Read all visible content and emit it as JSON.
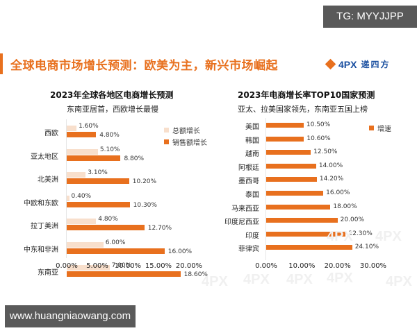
{
  "badges": {
    "tg": "TG: MYYJJPP",
    "site": "www.huangniaowang.com"
  },
  "header": {
    "title": "全球电商市场增长预测：欧美为主，新兴市场崛起",
    "logo_latin": "4PX",
    "logo_cn": "递四方"
  },
  "colors": {
    "accent": "#e8701e",
    "light_bar": "#f8dfcc",
    "logo_blue": "#1a4fa0"
  },
  "watermark": "4PX",
  "chart_data": [
    {
      "type": "bar",
      "orientation": "horizontal",
      "title": "2023年全球各地区电商增长预测",
      "subtitle": "东南亚居首，西欧增长最慢",
      "categories": [
        "西欧",
        "亚太地区",
        "北美洲",
        "中欧和东欧",
        "拉丁美洲",
        "中东和非洲",
        "东南亚"
      ],
      "series": [
        {
          "name": "总额增长",
          "color": "#f8dfcc",
          "values": [
            1.6,
            5.1,
            3.1,
            0.4,
            4.8,
            6.0,
            7.0
          ],
          "labels": [
            "1.60%",
            "5.10%",
            "3.10%",
            "0.40%",
            "4.80%",
            "6.00%",
            "7.00%"
          ]
        },
        {
          "name": "销售额增长",
          "color": "#e8701e",
          "values": [
            4.8,
            8.8,
            10.2,
            10.3,
            12.7,
            16.0,
            18.6
          ],
          "labels": [
            "4.80%",
            "8.80%",
            "10.20%",
            "10.30%",
            "12.70%",
            "16.00%",
            "18.60%"
          ]
        }
      ],
      "xticks": [
        "0.00%",
        "5.00%",
        "10.00%",
        "15.00%",
        "20.00%"
      ],
      "xlim": [
        0,
        20
      ],
      "xlabel": "",
      "ylabel": "",
      "legend_position": "top-right",
      "grid": false
    },
    {
      "type": "bar",
      "orientation": "horizontal",
      "title": "2023年电商增长率TOP10国家预测",
      "subtitle": "亚太、拉美国家领先，东南亚五国上榜",
      "categories": [
        "美国",
        "韩国",
        "越南",
        "阿根廷",
        "墨西哥",
        "泰国",
        "马来西亚",
        "印度尼西亚",
        "印度",
        "菲律宾"
      ],
      "series": [
        {
          "name": "增速",
          "color": "#e8701e",
          "values": [
            10.5,
            10.6,
            12.5,
            14.0,
            14.2,
            16.0,
            18.0,
            20.0,
            22.3,
            24.1
          ],
          "labels": [
            "10.50%",
            "10.60%",
            "12.50%",
            "14.00%",
            "14.20%",
            "16.00%",
            "18.00%",
            "20.00%",
            "22.30%",
            "24.10%"
          ]
        }
      ],
      "xticks": [
        "0.00%",
        "10.00%",
        "20.00%",
        "30.00%"
      ],
      "xlim": [
        0,
        30
      ],
      "xlabel": "",
      "ylabel": "",
      "legend_position": "top-right",
      "grid": false
    }
  ]
}
